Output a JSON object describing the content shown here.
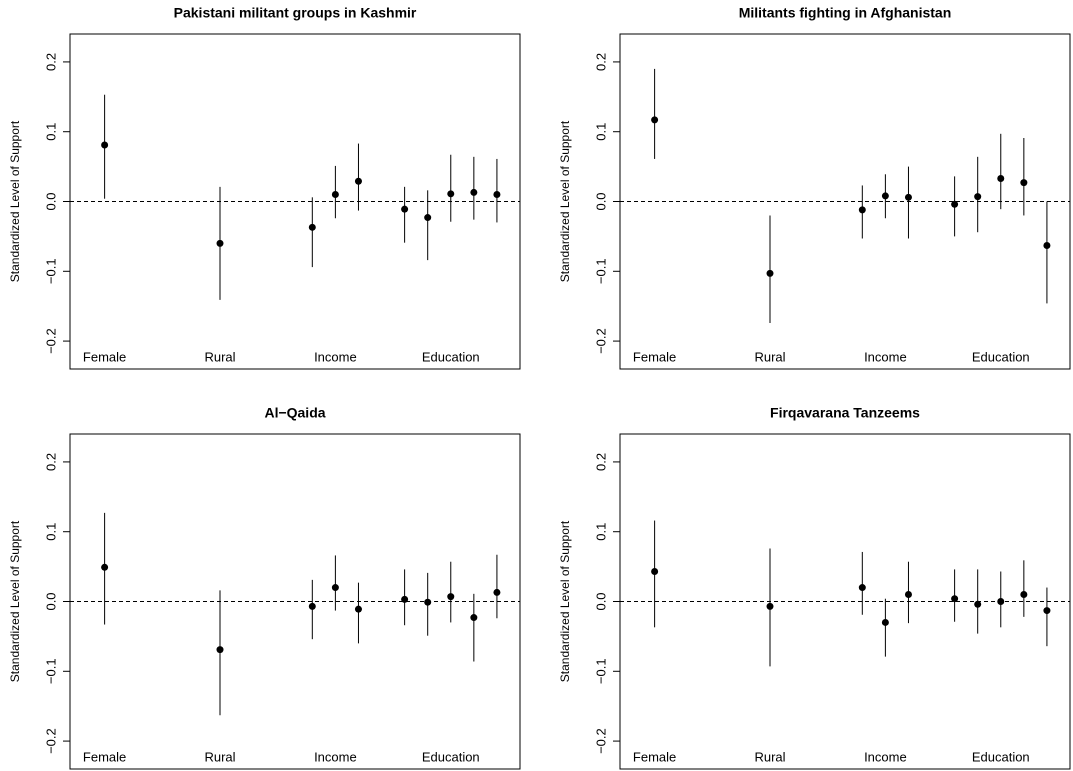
{
  "chart_data": [
    {
      "type": "errorbar",
      "title": "Pakistani militant groups in Kashmir",
      "ylabel": "Standardized Level of Support",
      "color": "#000000",
      "x": [
        1,
        6,
        10,
        11,
        12,
        14,
        15,
        16,
        17,
        18
      ],
      "values": [
        0.081,
        -0.06,
        -0.037,
        0.01,
        0.029,
        -0.011,
        -0.023,
        0.011,
        0.013,
        0.01
      ],
      "lower": [
        0.004,
        -0.141,
        -0.094,
        -0.024,
        -0.013,
        -0.059,
        -0.084,
        -0.029,
        -0.026,
        -0.03
      ],
      "upper": [
        0.153,
        0.021,
        0.006,
        0.051,
        0.083,
        0.021,
        0.016,
        0.067,
        0.064,
        0.061
      ],
      "group_labels": [
        {
          "label": "Female",
          "x": 1
        },
        {
          "label": "Rural",
          "x": 6
        },
        {
          "label": "Income",
          "x": 11
        },
        {
          "label": "Education",
          "x": 16
        }
      ],
      "reference_line": 0,
      "xlim": [
        -0.5,
        19
      ],
      "ylim": [
        -0.24,
        0.24
      ],
      "yticks": [
        {
          "value": -0.2,
          "label": "−0.2"
        },
        {
          "value": -0.1,
          "label": "−0.1"
        },
        {
          "value": 0,
          "label": "0.0"
        },
        0.1,
        0.2
      ]
    },
    {
      "type": "errorbar",
      "title": "Militants fighting in Afghanistan",
      "ylabel": "Standardized Level of Support",
      "color": "#000000",
      "x": [
        1,
        6,
        10,
        11,
        12,
        14,
        15,
        16,
        17,
        18
      ],
      "values": [
        0.117,
        -0.103,
        -0.012,
        0.008,
        0.006,
        -0.004,
        0.007,
        0.033,
        0.027,
        -0.063
      ],
      "lower": [
        0.061,
        -0.174,
        -0.053,
        -0.024,
        -0.053,
        -0.05,
        -0.044,
        -0.011,
        -0.02,
        -0.146
      ],
      "upper": [
        0.19,
        -0.02,
        0.023,
        0.039,
        0.05,
        0.036,
        0.064,
        0.097,
        0.091,
        0.0
      ],
      "group_labels": [
        {
          "label": "Female",
          "x": 1
        },
        {
          "label": "Rural",
          "x": 6
        },
        {
          "label": "Income",
          "x": 11
        },
        {
          "label": "Education",
          "x": 16
        }
      ],
      "reference_line": 0,
      "xlim": [
        -0.5,
        19
      ],
      "ylim": [
        -0.24,
        0.24
      ],
      "yticks": [
        {
          "value": -0.2,
          "label": "−0.2"
        },
        {
          "value": -0.1,
          "label": "−0.1"
        },
        {
          "value": 0,
          "label": "0.0"
        },
        0.1,
        0.2
      ]
    },
    {
      "type": "errorbar",
      "title": "Al−Qaida",
      "ylabel": "Standardized Level of Support",
      "color": "#000000",
      "x": [
        1,
        6,
        10,
        11,
        12,
        14,
        15,
        16,
        17,
        18
      ],
      "values": [
        0.049,
        -0.069,
        -0.007,
        0.02,
        -0.011,
        0.003,
        -0.001,
        0.007,
        -0.023,
        0.013
      ],
      "lower": [
        -0.033,
        -0.163,
        -0.054,
        -0.013,
        -0.06,
        -0.034,
        -0.049,
        -0.03,
        -0.086,
        -0.024
      ],
      "upper": [
        0.127,
        0.016,
        0.031,
        0.066,
        0.027,
        0.046,
        0.041,
        0.057,
        0.011,
        0.067
      ],
      "group_labels": [
        {
          "label": "Female",
          "x": 1
        },
        {
          "label": "Rural",
          "x": 6
        },
        {
          "label": "Income",
          "x": 11
        },
        {
          "label": "Education",
          "x": 16
        }
      ],
      "reference_line": 0,
      "xlim": [
        -0.5,
        19
      ],
      "ylim": [
        -0.24,
        0.24
      ],
      "yticks": [
        {
          "value": -0.2,
          "label": "−0.2"
        },
        {
          "value": -0.1,
          "label": "−0.1"
        },
        {
          "value": 0,
          "label": "0.0"
        },
        0.1,
        0.2
      ]
    },
    {
      "type": "errorbar",
      "title": "Firqavarana Tanzeems",
      "ylabel": "Standardized Level of Support",
      "color": "#000000",
      "x": [
        1,
        6,
        10,
        11,
        12,
        14,
        15,
        16,
        17,
        18
      ],
      "values": [
        0.043,
        -0.007,
        0.02,
        -0.03,
        0.01,
        0.004,
        -0.004,
        0.0,
        0.01,
        -0.013
      ],
      "lower": [
        -0.037,
        -0.093,
        -0.019,
        -0.079,
        -0.031,
        -0.029,
        -0.046,
        -0.037,
        -0.022,
        -0.064
      ],
      "upper": [
        0.116,
        0.076,
        0.071,
        0.004,
        0.057,
        0.046,
        0.046,
        0.043,
        0.059,
        0.02
      ],
      "group_labels": [
        {
          "label": "Female",
          "x": 1
        },
        {
          "label": "Rural",
          "x": 6
        },
        {
          "label": "Income",
          "x": 11
        },
        {
          "label": "Education",
          "x": 16
        }
      ],
      "reference_line": 0,
      "xlim": [
        -0.5,
        19
      ],
      "ylim": [
        -0.24,
        0.24
      ],
      "yticks": [
        {
          "value": -0.2,
          "label": "−0.2"
        },
        {
          "value": -0.1,
          "label": "−0.1"
        },
        {
          "value": 0,
          "label": "0.0"
        },
        0.1,
        0.2
      ]
    }
  ]
}
